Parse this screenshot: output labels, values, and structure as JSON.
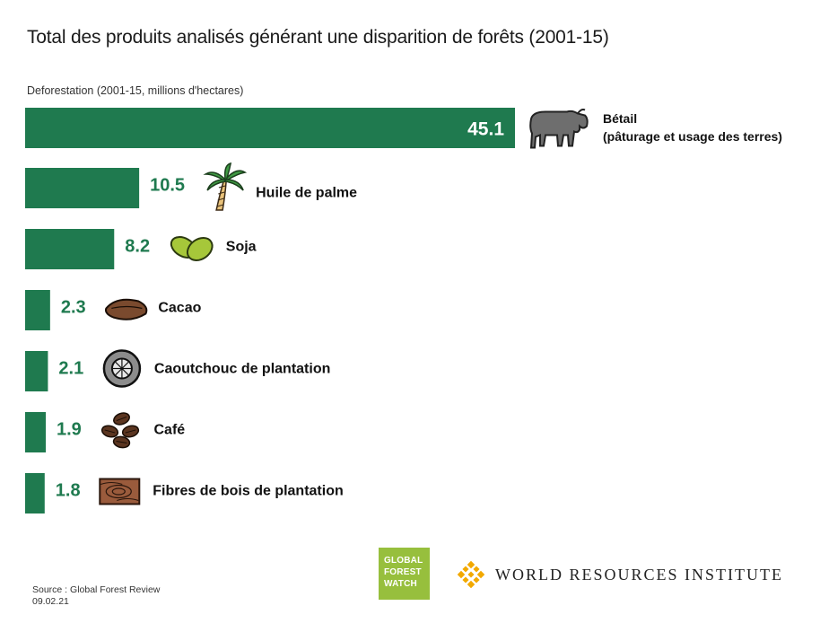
{
  "title": "Total des produits analisés générant une disparition de forêts (2001-15)",
  "source_lines": [
    "Source : Global Forest Review",
    "09.02.21"
  ],
  "logos": {
    "gfw": [
      "GLOBAL",
      "FOREST",
      "WATCH"
    ],
    "wri": "WORLD RESOURCES INSTITUTE"
  },
  "colors": {
    "bar": "#1f7a4f",
    "gfw": "#97bf3d",
    "wri": "#f2a900"
  },
  "chart_data": {
    "type": "bar",
    "orientation": "horizontal",
    "title": "Total des produits analisés générant une disparition de forêts (2001-15)",
    "ylabel": "Deforestation (2001-15, millions d'hectares)",
    "categories": [
      "Bétail (pâturage et usage des terres)",
      "Huile de palme",
      "Soja",
      "Cacao",
      "Caoutchouc de plantation",
      "Café",
      "Fibres de bois de plantation"
    ],
    "label_lines": [
      [
        "Bétail",
        "(pâturage et usage des terres)"
      ],
      [
        "Huile de palme"
      ],
      [
        "Soja"
      ],
      [
        "Cacao"
      ],
      [
        "Caoutchouc de plantation"
      ],
      [
        "Café"
      ],
      [
        "Fibres de bois de plantation"
      ]
    ],
    "icons": [
      "cattle-icon",
      "palm-tree-icon",
      "soybean-icon",
      "cocoa-pod-icon",
      "rubber-tire-icon",
      "coffee-beans-icon",
      "wood-fiber-icon"
    ],
    "values": [
      45.1,
      10.5,
      8.2,
      2.3,
      2.1,
      1.9,
      1.8
    ],
    "value_labels": [
      "45.1",
      "10.5",
      "8.2",
      "2.3",
      "2.1",
      "1.9",
      "1.8"
    ],
    "xlim": [
      0,
      45.1
    ],
    "grid": false,
    "legend": "none"
  }
}
